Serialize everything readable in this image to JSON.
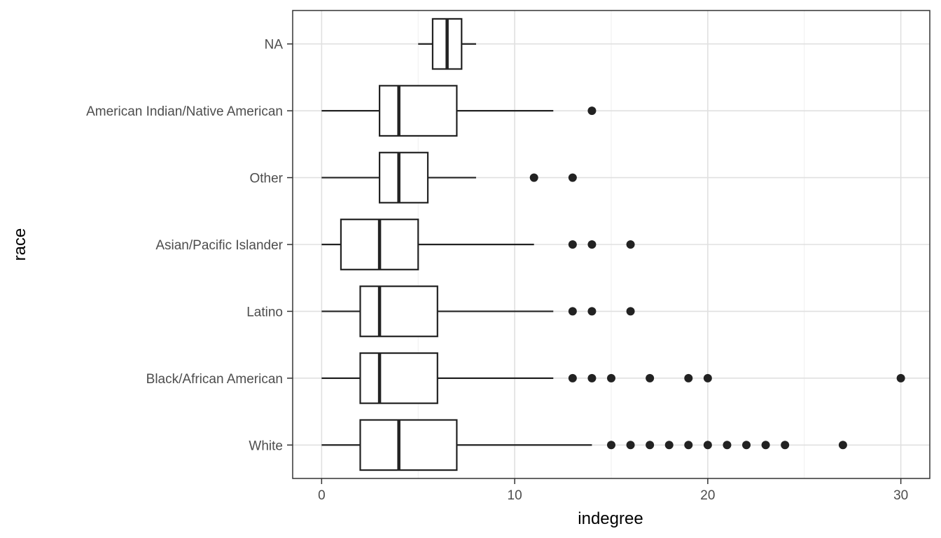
{
  "chart_data": {
    "type": "boxplot",
    "orientation": "horizontal",
    "xlabel": "indegree",
    "ylabel": "race",
    "xlim": [
      -1.5,
      31.5
    ],
    "xticks": [
      0,
      10,
      20,
      30
    ],
    "grid": true,
    "categories": [
      "White",
      "Black/African American",
      "Latino",
      "Asian/Pacific Islander",
      "Other",
      "American Indian/Native American",
      "NA"
    ],
    "boxes": [
      {
        "category": "White",
        "whisker_low": 0,
        "q1": 2,
        "median": 4,
        "q3": 7,
        "whisker_high": 14,
        "outliers": [
          15,
          16,
          17,
          18,
          19,
          20,
          21,
          22,
          23,
          24,
          27
        ]
      },
      {
        "category": "Black/African American",
        "whisker_low": 0,
        "q1": 2,
        "median": 3,
        "q3": 6,
        "whisker_high": 12,
        "outliers": [
          13,
          14,
          15,
          17,
          19,
          20,
          30
        ]
      },
      {
        "category": "Latino",
        "whisker_low": 0,
        "q1": 2,
        "median": 3,
        "q3": 6,
        "whisker_high": 12,
        "outliers": [
          13,
          14,
          16
        ]
      },
      {
        "category": "Asian/Pacific Islander",
        "whisker_low": 0,
        "q1": 1,
        "median": 3,
        "q3": 5,
        "whisker_high": 11,
        "outliers": [
          13,
          14,
          16
        ]
      },
      {
        "category": "Other",
        "whisker_low": 0,
        "q1": 3,
        "median": 4,
        "q3": 5.5,
        "whisker_high": 8,
        "outliers": [
          11,
          13
        ]
      },
      {
        "category": "American Indian/Native American",
        "whisker_low": 0,
        "q1": 3,
        "median": 4,
        "q3": 7,
        "whisker_high": 12,
        "outliers": [
          14
        ]
      },
      {
        "category": "NA",
        "whisker_low": 5,
        "q1": 5.75,
        "median": 6.5,
        "q3": 7.25,
        "whisker_high": 8,
        "outliers": []
      }
    ],
    "colors": {
      "box_line": "#222222",
      "grid_major": "#e0e0e0",
      "grid_minor": "#efefef",
      "panel_border": "#333333"
    }
  }
}
